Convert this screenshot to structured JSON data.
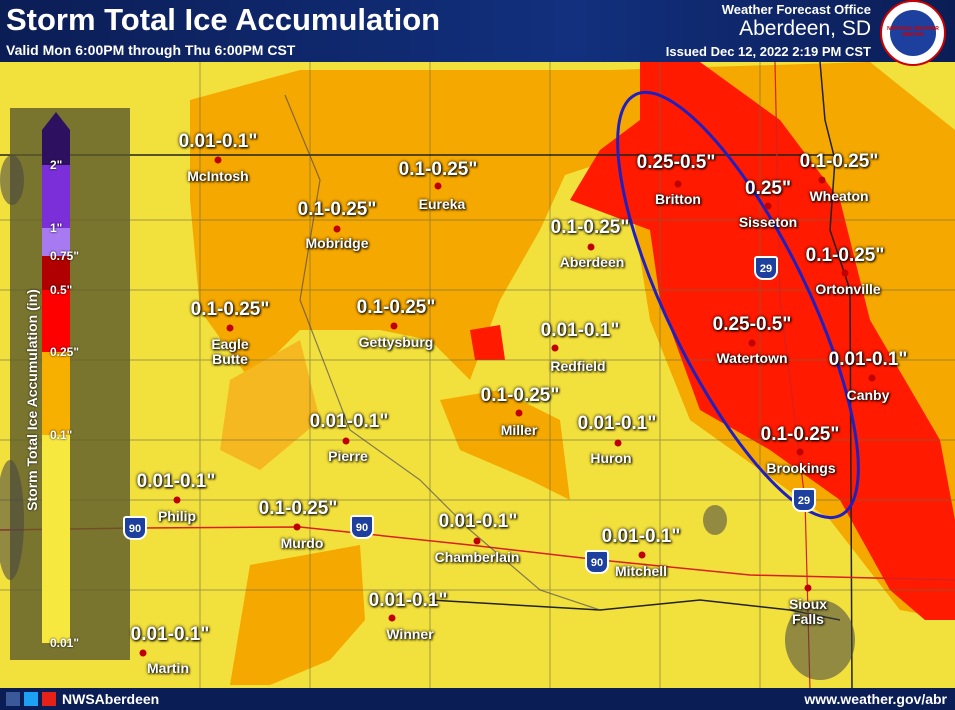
{
  "header": {
    "title": "Storm Total Ice Accumulation",
    "subtitle": "Valid Mon 6:00PM through Thu 6:00PM CST",
    "office": "Weather Forecast Office",
    "location": "Aberdeen, SD",
    "issued": "Issued Dec 12, 2022 2:19 PM CST",
    "logo_text": "NATIONAL WEATHER SERVICE"
  },
  "legend": {
    "title": "Storm Total Ice Accumulation (in)",
    "labels": [
      "2\"",
      "1\"",
      "0.75\"",
      "0.5\"",
      "0.25\"",
      "0.1\"",
      "0.01\""
    ]
  },
  "cities": [
    {
      "name": "McIntosh",
      "amount": "0.01-0.1\""
    },
    {
      "name": "Eureka",
      "amount": "0.1-0.25\""
    },
    {
      "name": "Mobridge",
      "amount": "0.1-0.25\""
    },
    {
      "name": "Aberdeen",
      "amount": "0.1-0.25\""
    },
    {
      "name": "Britton",
      "amount": "0.25-0.5\""
    },
    {
      "name": "Sisseton",
      "amount": "0.25\""
    },
    {
      "name": "Wheaton",
      "amount": "0.1-0.25\""
    },
    {
      "name": "Ortonville",
      "amount": "0.1-0.25\""
    },
    {
      "name": "Eagle Butte",
      "amount": "0.1-0.25\""
    },
    {
      "name": "Gettysburg",
      "amount": "0.1-0.25\""
    },
    {
      "name": "Redfield",
      "amount": "0.01-0.1\""
    },
    {
      "name": "Watertown",
      "amount": "0.25-0.5\""
    },
    {
      "name": "Canby",
      "amount": "0.01-0.1\""
    },
    {
      "name": "Miller",
      "amount": "0.1-0.25\""
    },
    {
      "name": "Huron",
      "amount": "0.01-0.1\""
    },
    {
      "name": "Pierre",
      "amount": "0.01-0.1\""
    },
    {
      "name": "Brookings",
      "amount": "0.1-0.25\""
    },
    {
      "name": "Philip",
      "amount": "0.01-0.1\""
    },
    {
      "name": "Murdo",
      "amount": "0.1-0.25\""
    },
    {
      "name": "Chamberlain",
      "amount": "0.01-0.1\""
    },
    {
      "name": "Mitchell",
      "amount": "0.01-0.1\""
    },
    {
      "name": "Winner",
      "amount": "0.01-0.1\""
    },
    {
      "name": "Martin",
      "amount": "0.01-0.1\""
    },
    {
      "name": "Sioux Falls"
    }
  ],
  "highways": [
    "90",
    "90",
    "90",
    "29",
    "29"
  ],
  "footer": {
    "social": "NWSAberdeen",
    "url": "www.weather.gov/abr"
  }
}
